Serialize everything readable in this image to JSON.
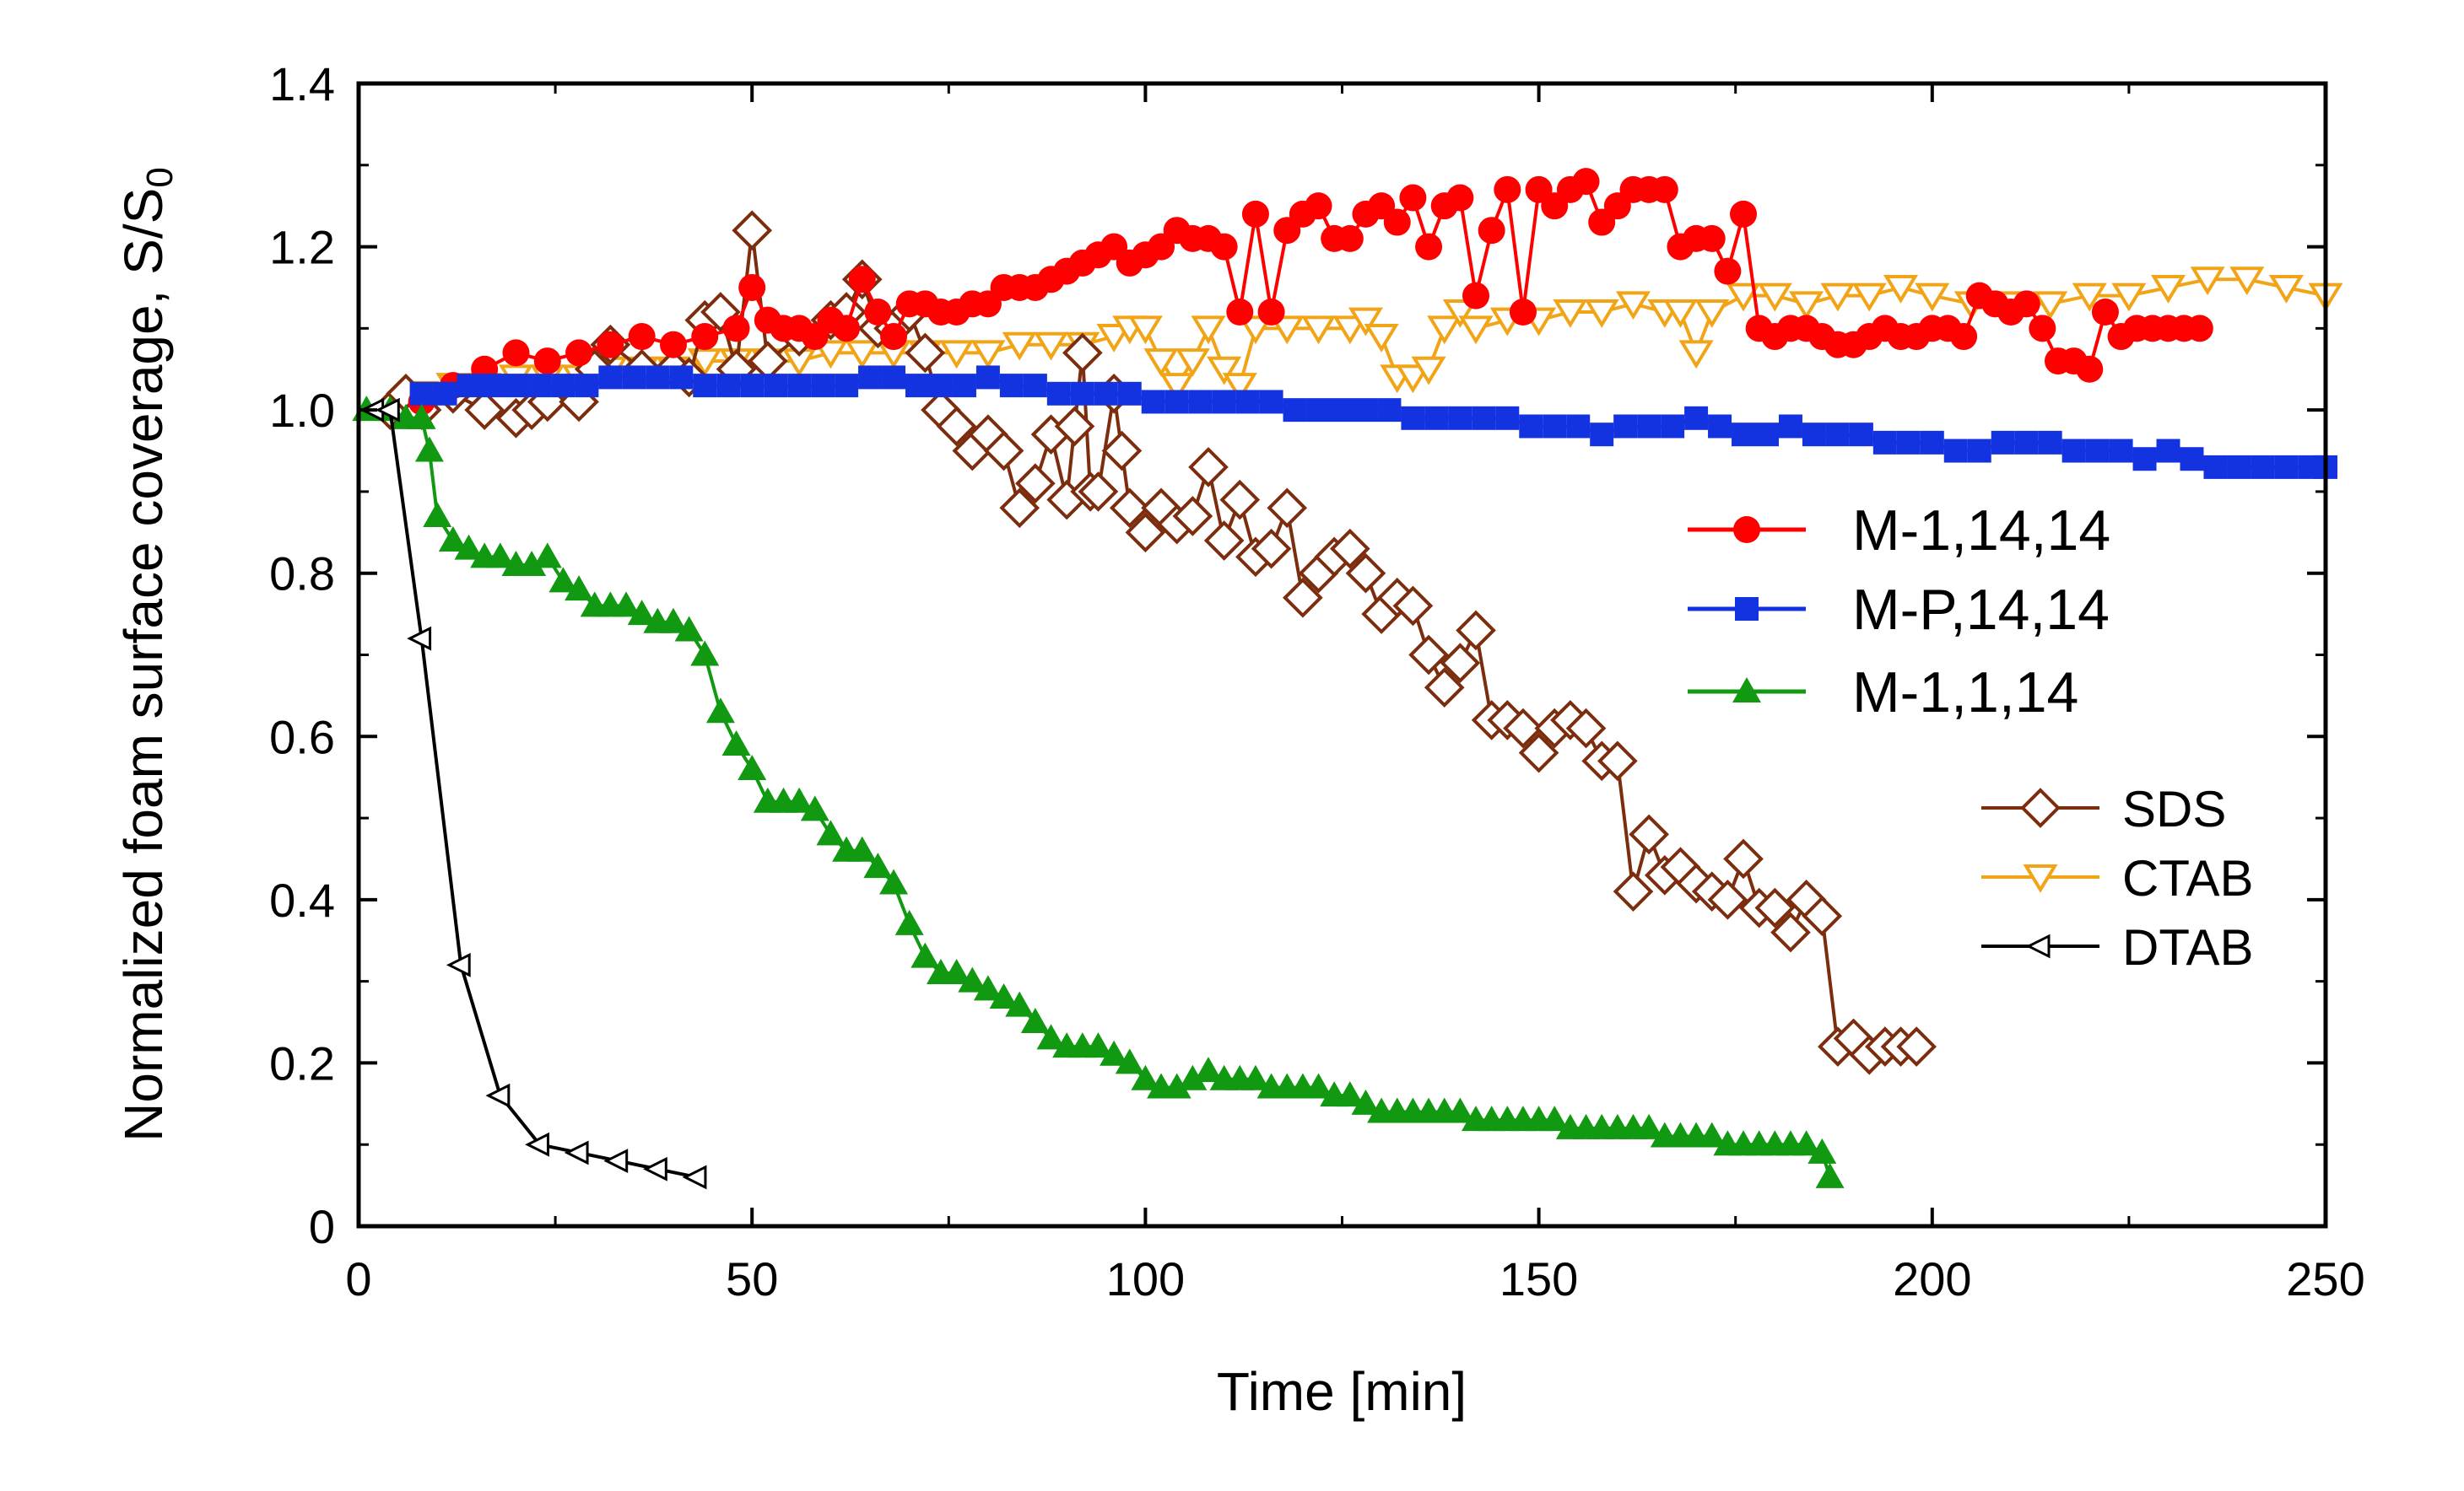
{
  "chart_data": {
    "type": "line",
    "title": "",
    "xlabel": "Time [min]",
    "ylabel_main": "Normalized foam surface coverage, S/S",
    "ylabel_sub": "0",
    "xlim": [
      0,
      250
    ],
    "ylim": [
      0,
      1.4
    ],
    "xticks": [
      0,
      50,
      100,
      150,
      200,
      250
    ],
    "xtick_labels": [
      "0",
      "50",
      "100",
      "150",
      "200",
      "250"
    ],
    "yticks": [
      0,
      0.2,
      0.4,
      0.6,
      0.8,
      1.0,
      1.2,
      1.4
    ],
    "ytick_labels": [
      "0",
      "0.2",
      "0.4",
      "0.6",
      "0.8",
      "1.0",
      "1.2",
      "1.4"
    ],
    "grid": false,
    "legend_position": "right",
    "series": [
      {
        "name": "CTAB",
        "color": "#F2A417",
        "marker": "triangle-down-open",
        "x": [
          8,
          12,
          16,
          20,
          24,
          28,
          32,
          36,
          40,
          44,
          48,
          52,
          56,
          60,
          64,
          68,
          72,
          76,
          80,
          84,
          88,
          92,
          96,
          98,
          100,
          102,
          104,
          106,
          108,
          110,
          112,
          114,
          118,
          122,
          126,
          128,
          130,
          132,
          134,
          136,
          138,
          140,
          142,
          146,
          150,
          154,
          158,
          162,
          166,
          168,
          170,
          172,
          176,
          180,
          184,
          188,
          192,
          196,
          200,
          205,
          210,
          215,
          220,
          225,
          230,
          235,
          240,
          245,
          250
        ],
        "y": [
          1.02,
          1.03,
          1.03,
          1.04,
          1.04,
          1.04,
          1.05,
          1.05,
          1.05,
          1.06,
          1.06,
          1.06,
          1.06,
          1.07,
          1.07,
          1.07,
          1.07,
          1.07,
          1.07,
          1.08,
          1.08,
          1.08,
          1.09,
          1.1,
          1.1,
          1.06,
          1.03,
          1.06,
          1.1,
          1.05,
          1.03,
          1.1,
          1.1,
          1.1,
          1.1,
          1.11,
          1.09,
          1.04,
          1.04,
          1.05,
          1.1,
          1.12,
          1.1,
          1.11,
          1.11,
          1.12,
          1.12,
          1.13,
          1.12,
          1.12,
          1.07,
          1.12,
          1.14,
          1.14,
          1.13,
          1.14,
          1.14,
          1.15,
          1.14,
          1.13,
          1.13,
          1.13,
          1.14,
          1.14,
          1.15,
          1.16,
          1.16,
          1.15,
          1.14
        ]
      },
      {
        "name": "SDS",
        "color": "#7B2D0E",
        "marker": "diamond-open",
        "x": [
          4,
          6,
          8,
          12,
          16,
          20,
          22,
          24,
          28,
          30,
          32,
          36,
          40,
          42,
          44,
          46,
          48,
          50,
          52,
          56,
          60,
          62,
          64,
          66,
          68,
          70,
          72,
          74,
          76,
          78,
          80,
          82,
          84,
          86,
          88,
          90,
          91,
          92,
          93,
          94,
          96,
          97,
          98,
          100,
          102,
          104,
          106,
          108,
          110,
          112,
          114,
          116,
          118,
          120,
          122,
          124,
          126,
          128,
          130,
          132,
          134,
          136,
          138,
          140,
          142,
          144,
          146,
          148,
          150,
          152,
          154,
          156,
          158,
          160,
          162,
          164,
          166,
          168,
          170,
          172,
          174,
          176,
          178,
          180,
          182,
          184,
          186,
          188,
          190,
          192,
          194,
          196,
          198
        ],
        "y": [
          1.0,
          1.02,
          1.0,
          1.02,
          1.0,
          0.99,
          1.0,
          1.01,
          1.01,
          1.05,
          1.08,
          1.05,
          1.05,
          1.04,
          1.11,
          1.12,
          1.05,
          1.22,
          1.06,
          1.09,
          1.11,
          1.12,
          1.16,
          1.1,
          1.1,
          1.12,
          1.07,
          1.0,
          0.98,
          0.95,
          0.97,
          0.95,
          0.88,
          0.91,
          0.97,
          0.89,
          0.98,
          1.07,
          0.9,
          0.9,
          1.02,
          0.95,
          0.88,
          0.85,
          0.88,
          0.86,
          0.87,
          0.93,
          0.84,
          0.89,
          0.82,
          0.83,
          0.88,
          0.77,
          0.8,
          0.82,
          0.83,
          0.8,
          0.75,
          0.77,
          0.76,
          0.7,
          0.66,
          0.69,
          0.73,
          0.62,
          0.62,
          0.61,
          0.58,
          0.61,
          0.62,
          0.61,
          0.57,
          0.57,
          0.41,
          0.48,
          0.43,
          0.44,
          0.42,
          0.41,
          0.4,
          0.45,
          0.39,
          0.39,
          0.36,
          0.4,
          0.38,
          0.22,
          0.23,
          0.21,
          0.22,
          0.22,
          0.22
        ]
      },
      {
        "name": "M-1,14,14",
        "color": "#FF0000",
        "marker": "circle",
        "x": [
          8,
          12,
          16,
          20,
          24,
          28,
          32,
          36,
          40,
          44,
          48,
          50,
          52,
          54,
          56,
          58,
          60,
          62,
          64,
          66,
          68,
          70,
          72,
          74,
          76,
          78,
          80,
          82,
          84,
          86,
          88,
          90,
          92,
          94,
          96,
          98,
          100,
          102,
          104,
          106,
          108,
          110,
          112,
          114,
          116,
          118,
          120,
          122,
          124,
          126,
          128,
          130,
          132,
          134,
          136,
          138,
          140,
          142,
          144,
          146,
          148,
          150,
          152,
          154,
          156,
          158,
          160,
          162,
          164,
          166,
          168,
          170,
          172,
          174,
          176,
          178,
          180,
          182,
          184,
          186,
          188,
          190,
          192,
          194,
          196,
          198,
          200,
          202,
          204,
          206,
          208,
          210,
          212,
          214,
          216,
          218,
          220,
          222,
          224,
          226,
          228,
          230,
          232,
          234
        ],
        "y": [
          1.01,
          1.03,
          1.05,
          1.07,
          1.06,
          1.07,
          1.08,
          1.09,
          1.08,
          1.09,
          1.1,
          1.15,
          1.11,
          1.1,
          1.1,
          1.09,
          1.11,
          1.1,
          1.16,
          1.12,
          1.09,
          1.13,
          1.13,
          1.12,
          1.12,
          1.13,
          1.13,
          1.15,
          1.15,
          1.15,
          1.16,
          1.17,
          1.18,
          1.19,
          1.2,
          1.18,
          1.19,
          1.2,
          1.22,
          1.21,
          1.21,
          1.2,
          1.12,
          1.24,
          1.12,
          1.22,
          1.24,
          1.25,
          1.21,
          1.21,
          1.24,
          1.25,
          1.23,
          1.26,
          1.2,
          1.25,
          1.26,
          1.14,
          1.22,
          1.27,
          1.12,
          1.27,
          1.25,
          1.27,
          1.28,
          1.23,
          1.25,
          1.27,
          1.27,
          1.27,
          1.2,
          1.21,
          1.21,
          1.17,
          1.24,
          1.1,
          1.09,
          1.1,
          1.1,
          1.09,
          1.08,
          1.08,
          1.09,
          1.1,
          1.09,
          1.09,
          1.1,
          1.1,
          1.09,
          1.14,
          1.13,
          1.12,
          1.13,
          1.1,
          1.06,
          1.06,
          1.05,
          1.12,
          1.09,
          1.1,
          1.1,
          1.1,
          1.1,
          1.1
        ]
      },
      {
        "name": "M-P,14,14",
        "color": "#1433E0",
        "marker": "square",
        "x": [
          8,
          11,
          14,
          17,
          20,
          23,
          26,
          29,
          32,
          35,
          38,
          41,
          44,
          47,
          50,
          53,
          56,
          59,
          62,
          65,
          68,
          71,
          74,
          77,
          80,
          83,
          86,
          89,
          92,
          95,
          98,
          101,
          104,
          107,
          110,
          113,
          116,
          119,
          122,
          125,
          128,
          131,
          134,
          137,
          140,
          143,
          146,
          149,
          152,
          155,
          158,
          161,
          164,
          167,
          170,
          173,
          176,
          179,
          182,
          185,
          188,
          191,
          194,
          197,
          200,
          203,
          206,
          209,
          212,
          215,
          218,
          221,
          224,
          227,
          230,
          233,
          236,
          239,
          242,
          245,
          248,
          250
        ],
        "y": [
          1.02,
          1.02,
          1.03,
          1.03,
          1.03,
          1.03,
          1.03,
          1.03,
          1.04,
          1.04,
          1.04,
          1.04,
          1.03,
          1.03,
          1.03,
          1.03,
          1.03,
          1.03,
          1.03,
          1.04,
          1.04,
          1.03,
          1.03,
          1.03,
          1.04,
          1.03,
          1.03,
          1.02,
          1.02,
          1.02,
          1.02,
          1.01,
          1.01,
          1.01,
          1.01,
          1.01,
          1.01,
          1.0,
          1.0,
          1.0,
          1.0,
          1.0,
          0.99,
          0.99,
          0.99,
          0.99,
          0.99,
          0.98,
          0.98,
          0.98,
          0.97,
          0.98,
          0.98,
          0.98,
          0.99,
          0.98,
          0.97,
          0.97,
          0.98,
          0.97,
          0.97,
          0.97,
          0.96,
          0.96,
          0.96,
          0.95,
          0.95,
          0.96,
          0.96,
          0.96,
          0.95,
          0.95,
          0.95,
          0.94,
          0.95,
          0.94,
          0.93,
          0.93,
          0.93,
          0.93,
          0.93,
          0.93
        ]
      },
      {
        "name": "M-1,1,14",
        "color": "#119911",
        "marker": "triangle-up",
        "x": [
          1,
          4,
          6,
          8,
          9,
          10,
          12,
          14,
          16,
          18,
          20,
          22,
          24,
          26,
          28,
          30,
          32,
          34,
          36,
          38,
          40,
          42,
          44,
          46,
          48,
          50,
          52,
          54,
          56,
          58,
          60,
          62,
          64,
          66,
          68,
          70,
          72,
          74,
          76,
          78,
          80,
          82,
          84,
          86,
          88,
          90,
          92,
          94,
          96,
          98,
          100,
          102,
          104,
          106,
          108,
          110,
          112,
          114,
          116,
          118,
          120,
          122,
          124,
          126,
          128,
          130,
          132,
          134,
          136,
          138,
          140,
          142,
          144,
          146,
          148,
          150,
          152,
          154,
          156,
          158,
          160,
          162,
          164,
          166,
          168,
          170,
          172,
          174,
          176,
          178,
          180,
          182,
          184,
          186,
          187
        ],
        "y": [
          1.0,
          1.0,
          0.99,
          0.99,
          0.95,
          0.87,
          0.84,
          0.83,
          0.82,
          0.82,
          0.81,
          0.81,
          0.82,
          0.79,
          0.78,
          0.76,
          0.76,
          0.76,
          0.75,
          0.74,
          0.74,
          0.73,
          0.7,
          0.63,
          0.59,
          0.56,
          0.52,
          0.52,
          0.52,
          0.51,
          0.48,
          0.46,
          0.46,
          0.44,
          0.42,
          0.37,
          0.33,
          0.31,
          0.31,
          0.3,
          0.29,
          0.28,
          0.27,
          0.25,
          0.23,
          0.22,
          0.22,
          0.22,
          0.21,
          0.2,
          0.18,
          0.17,
          0.17,
          0.18,
          0.19,
          0.18,
          0.18,
          0.18,
          0.17,
          0.17,
          0.17,
          0.17,
          0.16,
          0.16,
          0.15,
          0.14,
          0.14,
          0.14,
          0.14,
          0.14,
          0.14,
          0.13,
          0.13,
          0.13,
          0.13,
          0.13,
          0.13,
          0.12,
          0.12,
          0.12,
          0.12,
          0.12,
          0.12,
          0.11,
          0.11,
          0.11,
          0.11,
          0.1,
          0.1,
          0.1,
          0.1,
          0.1,
          0.1,
          0.09,
          0.06
        ]
      },
      {
        "name": "DTAB",
        "color": "#000000",
        "marker": "triangle-left-open",
        "x": [
          2,
          4,
          8,
          13,
          18,
          23,
          28,
          33,
          38,
          43
        ],
        "y": [
          1.0,
          1.0,
          0.72,
          0.32,
          0.16,
          0.1,
          0.09,
          0.08,
          0.07,
          0.06
        ]
      }
    ],
    "legend_main": [
      "M-1,14,14",
      "M-P,14,14",
      "M-1,1,14"
    ],
    "legend_secondary": [
      "SDS",
      "CTAB",
      "DTAB"
    ]
  }
}
